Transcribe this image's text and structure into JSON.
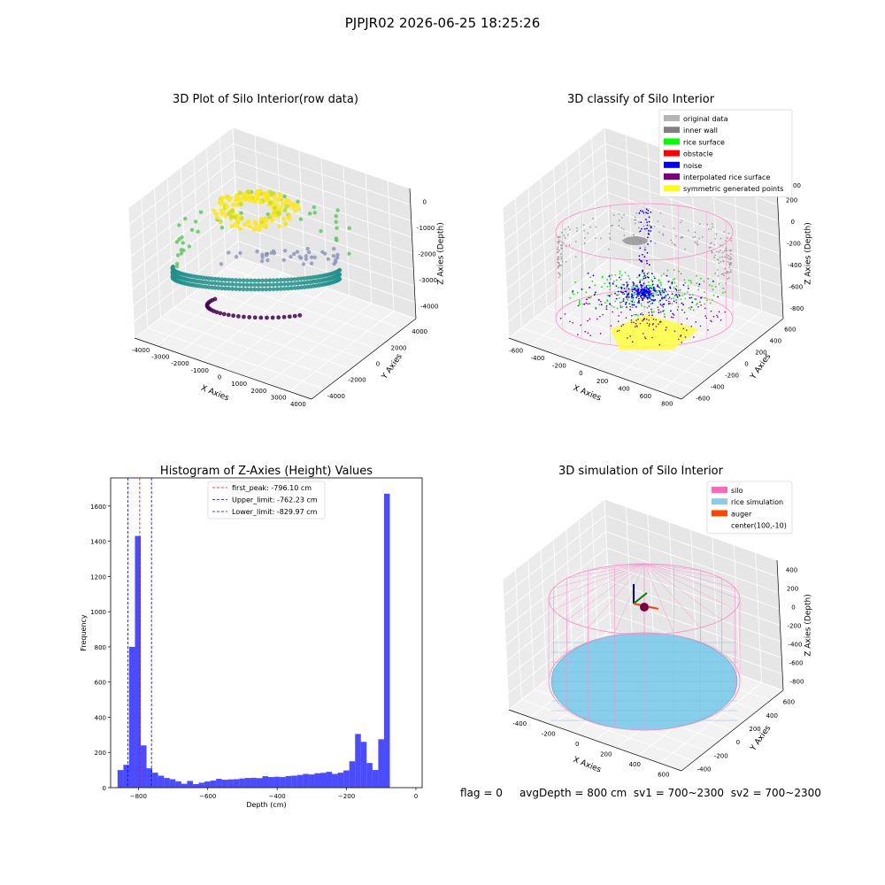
{
  "suptitle": "PJPJR02 2026-06-25 18:25:26",
  "status": {
    "flag": "flag = 0",
    "avg_depth": "avgDepth = 800 cm",
    "sv1": "sv1 = 700~2300",
    "sv2": "sv2 = 700~2300"
  },
  "chart_data": [
    {
      "type": "scatter3d",
      "title": "3D Plot of Silo Interior(row data)",
      "xlabel": "X Axies",
      "ylabel": "Y Axies",
      "zlabel": "Z Axies (Depth)",
      "x_ticks": [
        "-4000",
        "-3000",
        "-2000",
        "-1000",
        "0",
        "1000",
        "2000",
        "3000",
        "4000"
      ],
      "y_ticks": [
        "-4000",
        "-2000",
        "0",
        "2000",
        "4000"
      ],
      "z_ticks": [
        "0",
        "-1000",
        "-2000",
        "-3000",
        "-4000"
      ],
      "xlim": [
        -4000,
        4000
      ],
      "ylim": [
        -4000,
        4000
      ],
      "zlim": [
        -4500,
        0
      ],
      "colormap": "viridis (by depth)",
      "grid": true
    },
    {
      "type": "scatter3d",
      "title": "3D classify of Silo Interior",
      "xlabel": "X Axies",
      "ylabel": "Y Axies",
      "zlabel": "Z Axies (Depth)",
      "x_ticks": [
        "-600",
        "-400",
        "-200",
        "0",
        "200",
        "400",
        "600",
        "800"
      ],
      "y_ticks": [
        "-600",
        "-400",
        "-200",
        "0",
        "200",
        "400",
        "600"
      ],
      "z_ticks": [
        "200",
        "0",
        "-200",
        "-400",
        "-600",
        "-800"
      ],
      "z_top_partial_tick": "00",
      "xlim": [
        -600,
        800
      ],
      "ylim": [
        -600,
        600
      ],
      "zlim": [
        -800,
        400
      ],
      "legend_position": "top-right",
      "legend": [
        {
          "label": "original data",
          "color": "#b4b4b4"
        },
        {
          "label": "inner wall",
          "color": "#808080"
        },
        {
          "label": "rice surface",
          "color": "#00ff00"
        },
        {
          "label": "obstacle",
          "color": "#ff0000"
        },
        {
          "label": "noise",
          "color": "#0000ff"
        },
        {
          "label": "interpolated rice surface",
          "color": "#800080"
        },
        {
          "label": "symmetric generated points",
          "color": "#ffff00"
        }
      ],
      "grid": true
    },
    {
      "type": "bar",
      "title": "Histogram of Z-Axies (Height) Values",
      "xlabel": "Depth (cm)",
      "ylabel": "Frequency",
      "x_ticks": [
        "-800",
        "-600",
        "-400",
        "-200",
        "0"
      ],
      "y_ticks": [
        "0",
        "200",
        "400",
        "600",
        "800",
        "1000",
        "1200",
        "1400",
        "1600"
      ],
      "xlim": [
        -880,
        18
      ],
      "ylim": [
        0,
        1760
      ],
      "bin_start": -860,
      "bin_width": 16.7,
      "values": [
        100,
        130,
        800,
        1430,
        240,
        110,
        85,
        68,
        55,
        48,
        36,
        22,
        38,
        20,
        28,
        35,
        40,
        50,
        45,
        47,
        48,
        52,
        55,
        56,
        54,
        65,
        60,
        62,
        60,
        66,
        68,
        72,
        78,
        75,
        82,
        84,
        90,
        78,
        85,
        98,
        150,
        305,
        260,
        140,
        100,
        275,
        1670
      ],
      "bar_color": "#0000ff",
      "lines": [
        {
          "label": "first_peak: -796.10 cm",
          "x": -796.1,
          "color": "#ff0000"
        },
        {
          "label": "Upper_limit: -762.23 cm",
          "x": -762.23,
          "color": "#0000ff"
        },
        {
          "label": "Lower_limit: -829.97 cm",
          "x": -829.97,
          "color": "#0000ff"
        }
      ],
      "legend_position": "top-center"
    },
    {
      "type": "surface3d",
      "title": "3D simulation of Silo Interior",
      "xlabel": "X Axies",
      "ylabel": "Y Axies",
      "zlabel": "Z Axies (Depth)",
      "x_ticks": [
        "-400",
        "-200",
        "0",
        "200",
        "400",
        "600"
      ],
      "y_ticks": [
        "-400",
        "-200",
        "0",
        "200",
        "400",
        "600"
      ],
      "z_ticks": [
        "400",
        "200",
        "0",
        "-200",
        "-400",
        "-600",
        "-800"
      ],
      "legend_position": "top-right",
      "legend": [
        {
          "label": "silo",
          "color": "#ff69b4"
        },
        {
          "label": "rice simulation",
          "color": "#87ceeb"
        },
        {
          "label": "auger",
          "color": "#ff4500"
        },
        {
          "label": "center(100,-10)",
          "color": ""
        }
      ],
      "grid": true
    }
  ]
}
